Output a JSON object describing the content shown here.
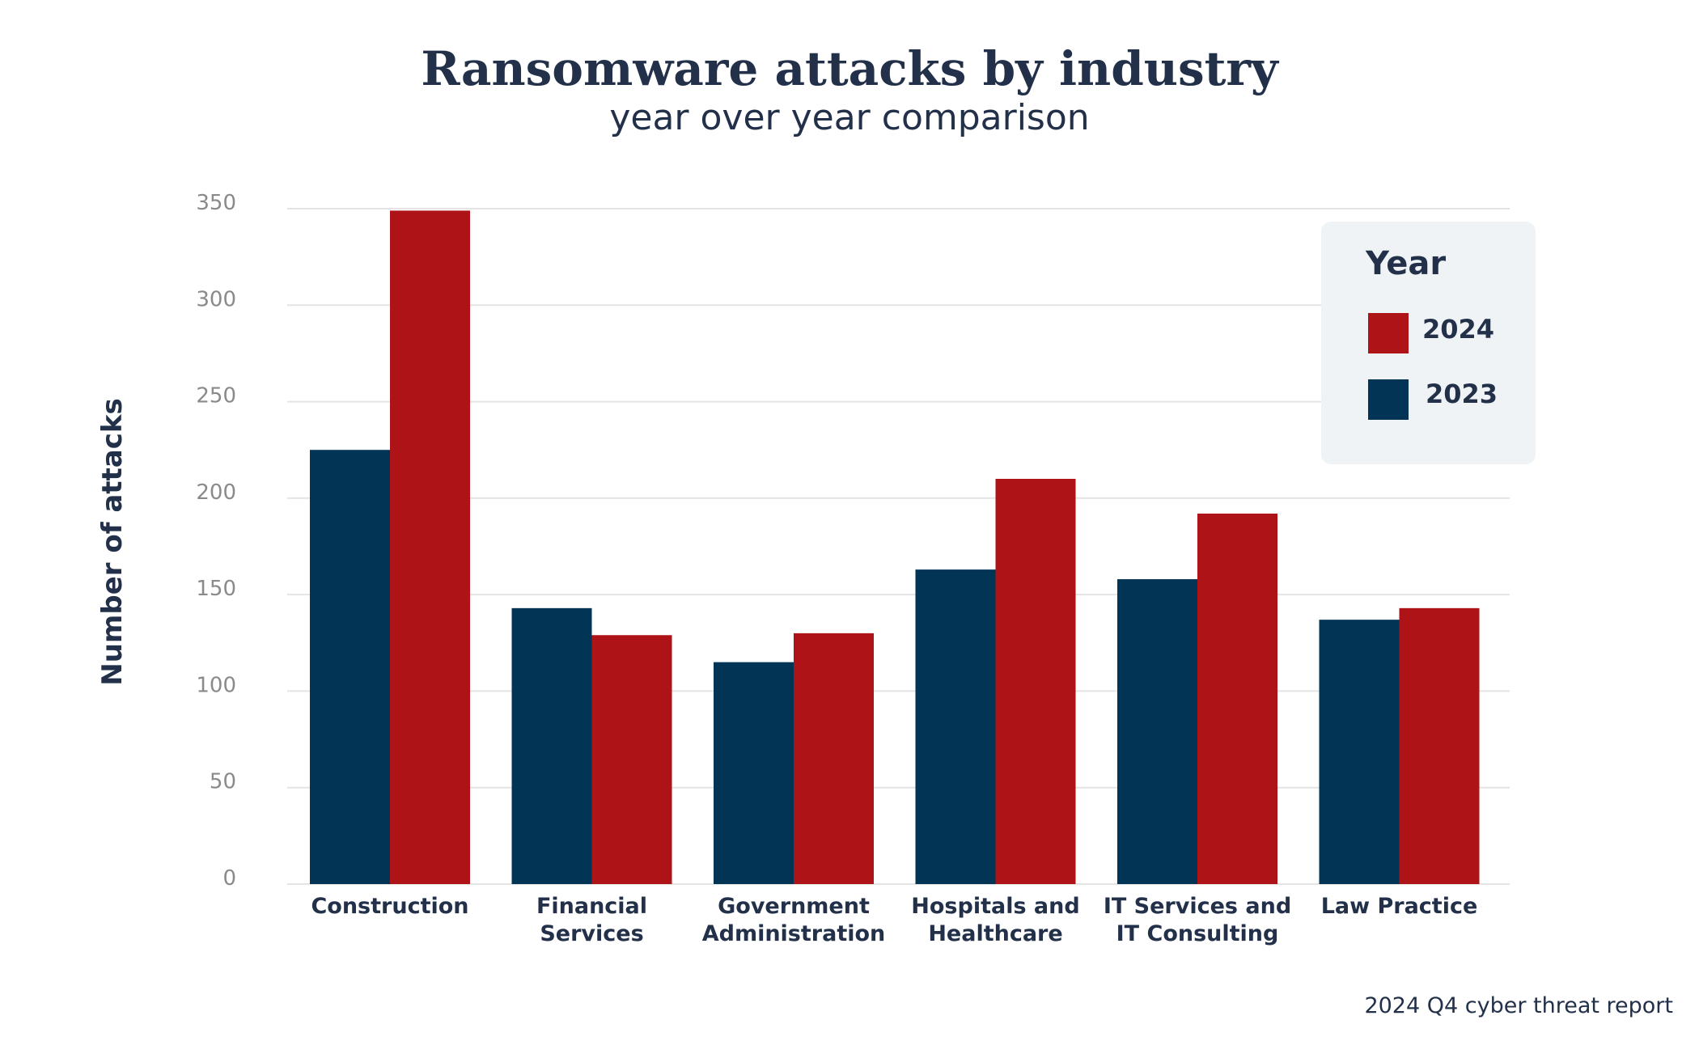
{
  "chart_data": {
    "type": "bar",
    "title": "Ransomware attacks by industry",
    "subtitle": "year over year comparison",
    "xlabel": "",
    "ylabel": "Number of attacks",
    "ylim": [
      0,
      350
    ],
    "yticks": [
      0,
      50,
      100,
      150,
      200,
      250,
      300,
      350
    ],
    "grid": true,
    "categories": [
      [
        "Construction"
      ],
      [
        "Financial",
        "Services"
      ],
      [
        "Government",
        "Administration"
      ],
      [
        "Hospitals and",
        "Healthcare"
      ],
      [
        "IT Services and",
        "IT Consulting"
      ],
      [
        "Law Practice"
      ]
    ],
    "series": [
      {
        "name": "2023",
        "color": "#023456",
        "values": [
          225,
          143,
          115,
          163,
          158,
          137
        ]
      },
      {
        "name": "2024",
        "color": "#ae1317",
        "values": [
          349,
          129,
          130,
          210,
          192,
          143
        ]
      }
    ],
    "legend": {
      "title": "Year",
      "placement": "top-right",
      "order": [
        "2024",
        "2023"
      ]
    }
  },
  "footer": {
    "source": "2024 Q4 cyber threat report"
  }
}
